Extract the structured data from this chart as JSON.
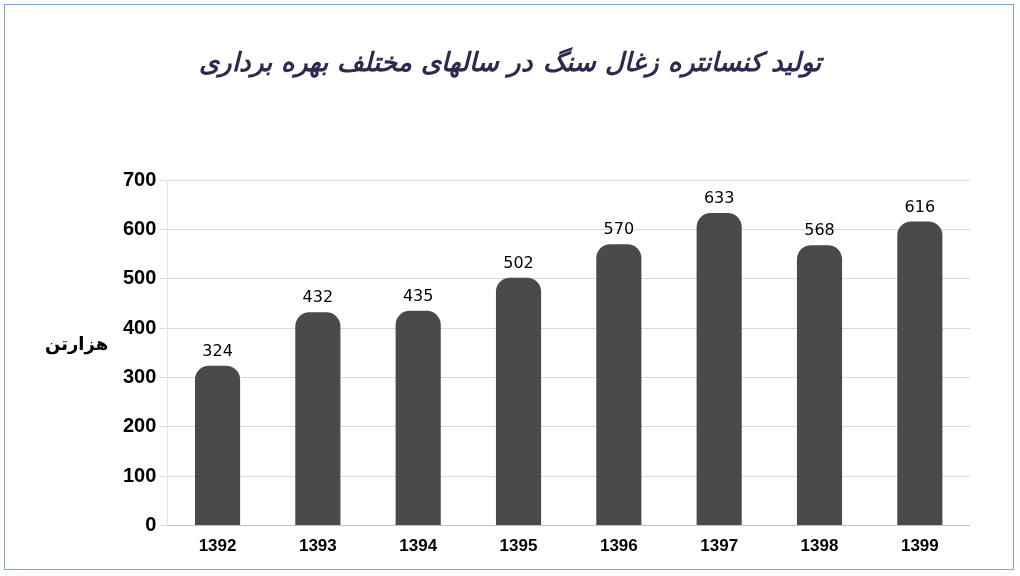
{
  "chart_data": {
    "type": "bar",
    "title": "تولید کنسانتره زغال سنگ در سالهای مختلف بهره برداری",
    "ylabel": "هزارتن",
    "categories": [
      "1392",
      "1393",
      "1394",
      "1395",
      "1396",
      "1397",
      "1398",
      "1399"
    ],
    "values": [
      324,
      432,
      435,
      502,
      570,
      633,
      568,
      616
    ],
    "color": "#4a4a4a",
    "ylim": [
      0,
      700
    ],
    "yticks": [
      0,
      100,
      200,
      300,
      400,
      500,
      600,
      700
    ],
    "grid": "y",
    "data_labels": true,
    "legend": false
  }
}
